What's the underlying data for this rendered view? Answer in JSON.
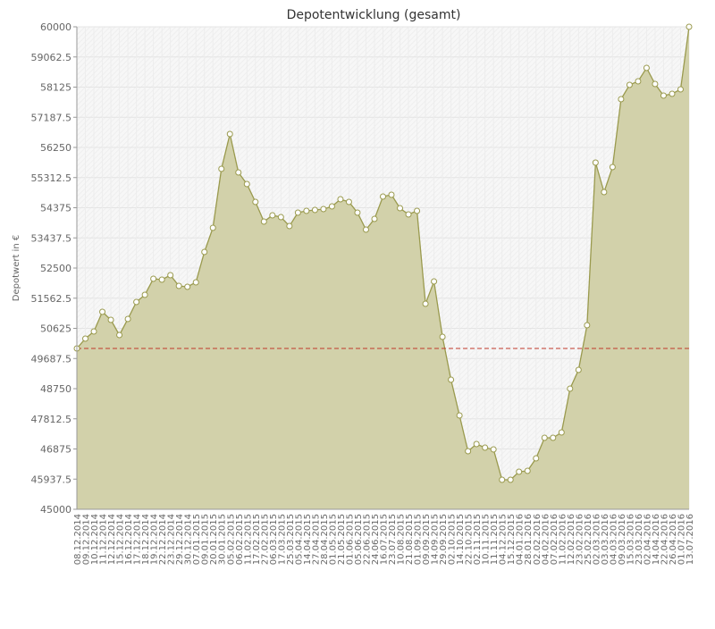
{
  "chart_data": {
    "type": "area",
    "title": "Depotentwicklung (gesamt)",
    "y_label": "Depotwert in €",
    "categories": [
      "08.12.2014",
      "09.12.2014",
      "10.12.2014",
      "11.12.2014",
      "12.12.2014",
      "15.12.2014",
      "16.12.2014",
      "17.12.2014",
      "18.12.2014",
      "19.12.2014",
      "22.12.2014",
      "23.12.2014",
      "29.12.2014",
      "30.12.2014",
      "07.01.2015",
      "09.01.2015",
      "20.01.2015",
      "30.01.2015",
      "05.02.2015",
      "06.02.2015",
      "11.02.2015",
      "17.02.2015",
      "27.02.2015",
      "06.03.2015",
      "17.03.2015",
      "25.03.2015",
      "05.04.2015",
      "14.04.2015",
      "27.04.2015",
      "28.04.2015",
      "01.05.2015",
      "21.05.2015",
      "01.06.2015",
      "05.06.2015",
      "22.06.2015",
      "24.06.2015",
      "16.07.2015",
      "23.07.2015",
      "10.08.2015",
      "21.08.2015",
      "01.09.2015",
      "09.09.2015",
      "14.09.2015",
      "29.09.2015",
      "02.10.2015",
      "14.10.2015",
      "22.10.2015",
      "02.11.2015",
      "10.11.2015",
      "11.11.2015",
      "04.12.2015",
      "15.12.2015",
      "04.01.2016",
      "28.01.2016",
      "02.02.2016",
      "04.02.2016",
      "07.02.2016",
      "11.02.2016",
      "12.02.2016",
      "23.02.2016",
      "25.02.2016",
      "02.03.2016",
      "03.03.2016",
      "04.03.2016",
      "09.03.2016",
      "15.03.2016",
      "23.03.2016",
      "02.04.2016",
      "14.04.2016",
      "22.04.2016",
      "26.04.2016",
      "01.07.2016",
      "13.07.2016"
    ],
    "values": [
      50000,
      50306,
      50528,
      51139,
      50889,
      50417,
      50917,
      51444,
      51667,
      52167,
      52139,
      52278,
      51944,
      51917,
      52056,
      53000,
      53750,
      55583,
      56667,
      55472,
      55111,
      54556,
      53944,
      54139,
      54083,
      53806,
      54222,
      54278,
      54306,
      54333,
      54417,
      54639,
      54556,
      54222,
      53694,
      54028,
      54722,
      54778,
      54361,
      54167,
      54278,
      51389,
      52083,
      50361,
      49028,
      47917,
      46806,
      47028,
      46917,
      46861,
      45917,
      45917,
      46167,
      46194,
      46583,
      47222,
      47222,
      47389,
      48750,
      49333,
      50722,
      55778,
      54861,
      55639,
      57750,
      58194,
      58306,
      58722,
      58222,
      57861,
      57917,
      58056,
      60000
    ],
    "color": "#9a9a4e",
    "fill": "#d2d1aa",
    "reference_line": 50000,
    "reference_color": "#c0392b",
    "ylim": [
      45000,
      60000
    ],
    "yticks": [
      45000,
      45937.5,
      46875,
      47812.5,
      48750,
      49687.5,
      50625,
      51562.5,
      52500,
      53437.5,
      54375,
      55312.5,
      56250,
      57187.5,
      58125,
      59062.5,
      60000
    ],
    "grid": true
  }
}
